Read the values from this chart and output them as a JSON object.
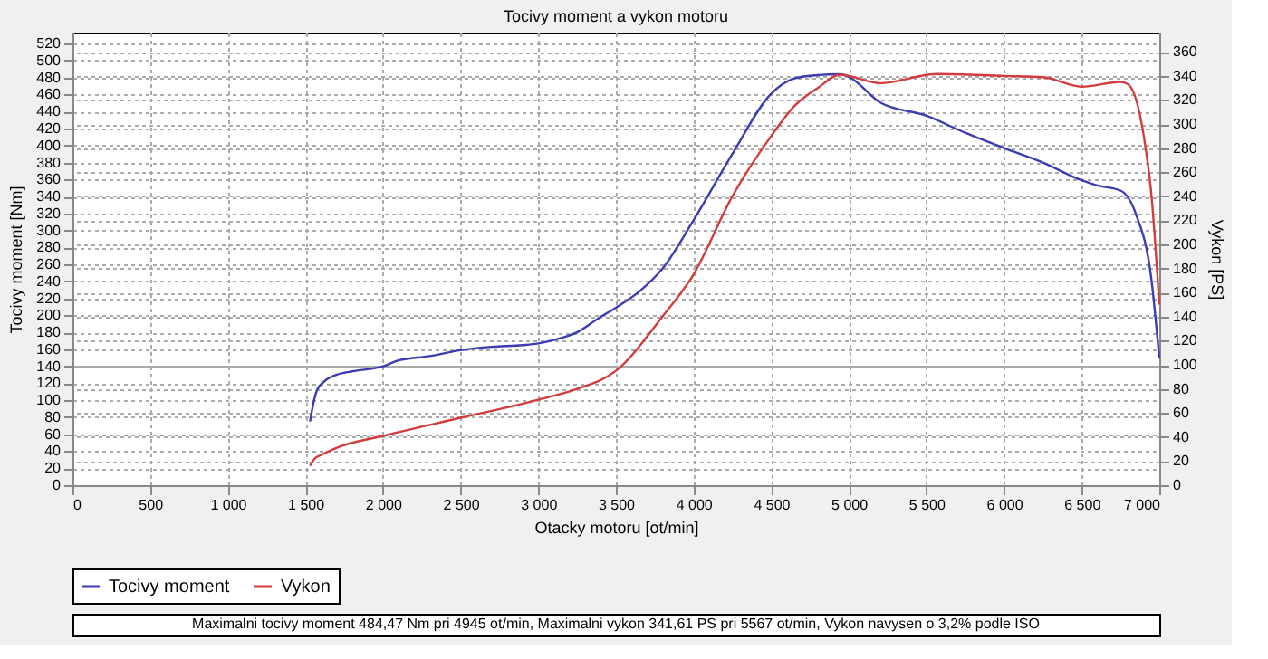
{
  "chart_data": {
    "type": "line",
    "title": "Tocivy moment a vykon motoru",
    "xlabel": "Otacky motoru [ot/min]",
    "ylabel": "Tocivy moment [Nm]",
    "y2label": "Vykon [PS]",
    "annotations": [
      "Maximalni tocivy moment 484,47 Nm pri 4945 ot/min,  Maximalni vykon 341,61 PS pri 5567 ot/min,  Vykon navysen o 3,2% podle ISO"
    ],
    "xlim": [
      0,
      7000
    ],
    "xticks": [
      0,
      500,
      {
        "value": 1000,
        "label": "1 000"
      },
      {
        "value": 1500,
        "label": "1 500"
      },
      {
        "value": 2000,
        "label": "2 000"
      },
      {
        "value": 2500,
        "label": "2 500"
      },
      {
        "value": 3000,
        "label": "3 000"
      },
      {
        "value": 3500,
        "label": "3 500"
      },
      {
        "value": 4000,
        "label": "4 000"
      },
      {
        "value": 4500,
        "label": "4 500"
      },
      {
        "value": 5000,
        "label": "5 000"
      },
      {
        "value": 5500,
        "label": "5 500"
      },
      {
        "value": 6000,
        "label": "6 000"
      },
      {
        "value": 6500,
        "label": "6 500"
      },
      {
        "value": 7000,
        "label": "7 000"
      }
    ],
    "ylim": [
      0,
      533
    ],
    "yticks": [
      0,
      20,
      40,
      60,
      80,
      100,
      120,
      140,
      160,
      180,
      200,
      220,
      240,
      260,
      280,
      300,
      320,
      340,
      360,
      380,
      400,
      420,
      440,
      460,
      480,
      500,
      520
    ],
    "y2lim": [
      0,
      376
    ],
    "y2ticks": [
      0,
      20,
      40,
      60,
      80,
      100,
      120,
      140,
      160,
      180,
      200,
      220,
      240,
      260,
      280,
      300,
      320,
      340,
      360
    ],
    "grid": true,
    "legend": "bottom",
    "line_style": "solid",
    "marker": "none",
    "series": [
      {
        "name": "Tocivy moment",
        "color": "#3c3cb4",
        "x": [
          1530,
          1550,
          1575,
          1620,
          1700,
          1800,
          2000,
          2100,
          2300,
          2500,
          2700,
          2900,
          3000,
          3100,
          3250,
          3400,
          3500,
          3650,
          3800,
          4000,
          4250,
          4500,
          4650,
          4800,
          4945,
          5000,
          5200,
          5500,
          5750,
          6000,
          6250,
          6500,
          6600,
          6750,
          6850,
          6950,
          7000
        ],
        "values": [
          75,
          95,
          112,
          122,
          130,
          134,
          140,
          147,
          152,
          159,
          163,
          165,
          167,
          171,
          180,
          198,
          209,
          228,
          255,
          312,
          390,
          461,
          479,
          483,
          484,
          481,
          451,
          435,
          415,
          397,
          380,
          359,
          353,
          347,
          319,
          241,
          149
        ]
      },
      {
        "name": "Vykon",
        "color": "#d23c3c",
        "axis": "y2",
        "x": [
          1530,
          1560,
          1600,
          1700,
          2000,
          2500,
          3000,
          3250,
          3500,
          3800,
          4000,
          4250,
          4500,
          4650,
          4800,
          4945,
          5200,
          5567,
          6000,
          6250,
          6500,
          6750,
          6800,
          6900,
          6950,
          7000
        ],
        "values": [
          16,
          22,
          25,
          31,
          41,
          56,
          71,
          80,
          95,
          140,
          175,
          240,
          290,
          315,
          330,
          341,
          334,
          341.6,
          340,
          339,
          331,
          335,
          333,
          290,
          240,
          150
        ]
      }
    ]
  }
}
